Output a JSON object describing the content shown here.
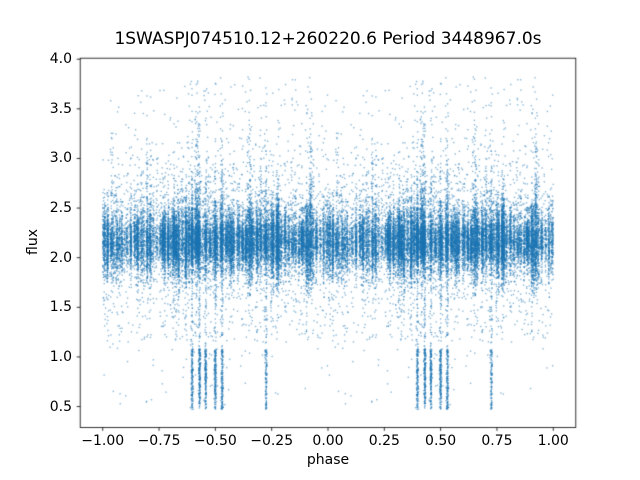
{
  "chart_data": {
    "type": "scatter",
    "title": "1SWASPJ074510.12+260220.6 Period 3448967.0s",
    "xlabel": "phase",
    "ylabel": "flux",
    "xlim": [
      -1.1,
      1.1
    ],
    "ylim": [
      0.29,
      4.01
    ],
    "x_ticks": [
      -1.0,
      -0.75,
      -0.5,
      -0.25,
      0.0,
      0.25,
      0.5,
      0.75,
      1.0
    ],
    "x_tick_labels": [
      "−1.00",
      "−0.75",
      "−0.50",
      "−0.25",
      "0.00",
      "0.25",
      "0.50",
      "0.75",
      "1.00"
    ],
    "y_ticks": [
      0.5,
      1.0,
      1.5,
      2.0,
      2.5,
      3.0,
      3.5,
      4.0
    ],
    "y_tick_labels": [
      "0.5",
      "1.0",
      "1.5",
      "2.0",
      "2.5",
      "3.0",
      "3.5",
      "4.0"
    ],
    "grid": false,
    "legend": null,
    "marker_color": "#1f77b4",
    "marker_alpha": 0.55,
    "marker_size_px": 1.35,
    "axes_color": "#000000",
    "background_color": "#ffffff",
    "n_points_estimate": 38000,
    "description": "Phase-folded light curve; each point in phase [0,1) is duplicated at phase-1, giving x range [-1,1]. Dense core band at flux ~1.9-2.5 in narrow vertical stripes; sparse tails up to ~3.8 and down to ~1.2; deep eclipse stripes reaching flux 0.47-1.1 near phase 0.40-0.55 and 0.72 (mirrored at -0.60..-0.45 and -0.28).",
    "distribution": {
      "seed": 7,
      "duplicate_offset": -1.0,
      "core_flux_mean": 2.16,
      "core_flux_sigma": 0.13,
      "flux_min": 0.45,
      "flux_max": 3.85,
      "stripe_spacing": 0.012,
      "points_per_stripe": 300,
      "n_background": 1600,
      "phase_blocks": [
        [
          0.0,
          0.065,
          0.9
        ],
        [
          0.065,
          0.125,
          0.3
        ],
        [
          0.125,
          0.315,
          0.75
        ],
        [
          0.315,
          0.425,
          1.0
        ],
        [
          0.425,
          0.56,
          0.5
        ],
        [
          0.56,
          0.79,
          1.0
        ],
        [
          0.79,
          0.93,
          0.85
        ],
        [
          0.93,
          1.0,
          0.45
        ]
      ],
      "high_tail_phases": [
        0.05,
        0.2,
        0.23,
        0.35,
        0.415,
        0.46,
        0.52,
        0.585,
        0.65,
        0.7,
        0.73,
        0.85,
        0.93
      ],
      "dip_stripes": [
        {
          "phase": 0.397,
          "depth_frac": 0.33
        },
        {
          "phase": 0.43,
          "depth_frac": 0.4
        },
        {
          "phase": 0.457,
          "depth_frac": 0.35
        },
        {
          "phase": 0.5,
          "depth_frac": 0.4
        },
        {
          "phase": 0.53,
          "depth_frac": 0.33
        },
        {
          "phase": 0.725,
          "depth_frac": 0.22
        }
      ],
      "dip_flux_range": [
        0.47,
        1.08
      ]
    }
  }
}
